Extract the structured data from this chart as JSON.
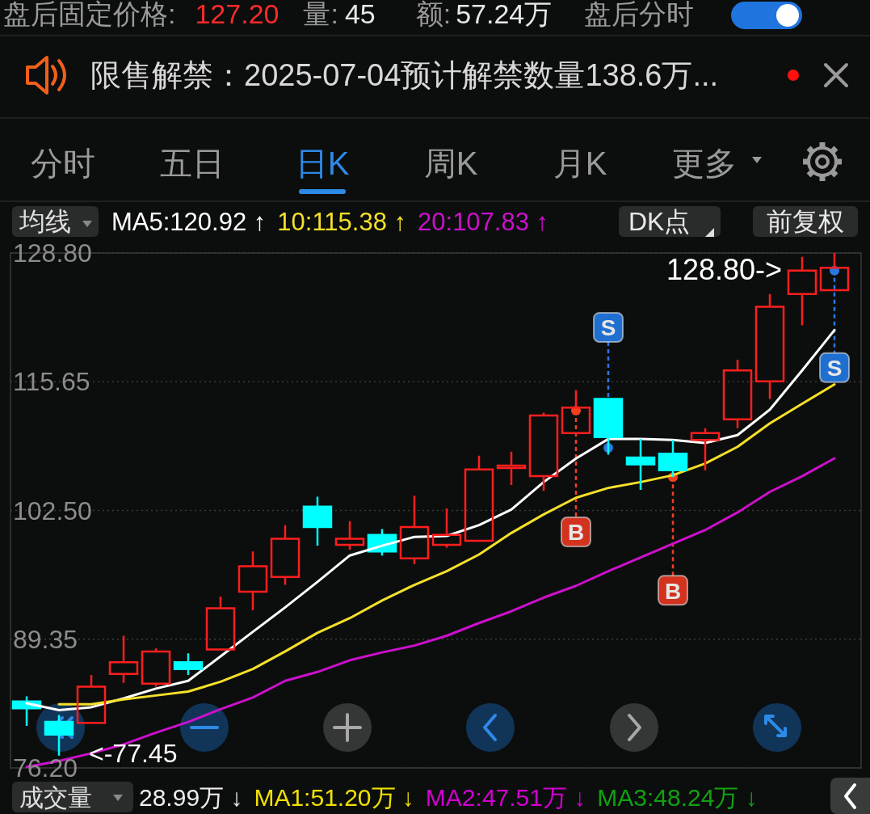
{
  "chart_data": {
    "type": "candlestick",
    "categories": [
      null,
      null,
      null,
      null,
      null,
      null,
      null,
      null,
      null,
      null,
      null,
      null,
      null,
      null,
      null,
      null,
      null,
      null,
      null,
      null,
      null,
      null,
      null,
      null,
      null,
      null
    ],
    "ohlc": [
      [
        83.0,
        83.5,
        80.5,
        82.3
      ],
      [
        80.9,
        81.6,
        77.45,
        79.6
      ],
      [
        80.8,
        85.7,
        80.8,
        84.5
      ],
      [
        85.8,
        89.7,
        84.9,
        87.0
      ],
      [
        84.8,
        88.4,
        84.5,
        88.1
      ],
      [
        87.0,
        87.9,
        85.7,
        86.3
      ],
      [
        88.3,
        93.7,
        88.3,
        92.5
      ],
      [
        94.2,
        98.3,
        92.3,
        96.8
      ],
      [
        95.7,
        101.0,
        94.9,
        99.6
      ],
      [
        102.9,
        103.9,
        98.9,
        100.8
      ],
      [
        99.0,
        101.4,
        98.5,
        99.6
      ],
      [
        100.0,
        100.6,
        97.9,
        98.3
      ],
      [
        97.6,
        104.0,
        97.0,
        100.8
      ],
      [
        99.0,
        102.7,
        98.7,
        100.0
      ],
      [
        99.4,
        108.1,
        99.4,
        106.7
      ],
      [
        106.9,
        108.5,
        105.1,
        107.0
      ],
      [
        106.0,
        112.5,
        104.5,
        112.2
      ],
      [
        110.4,
        114.8,
        110.4,
        113.0
      ],
      [
        113.9,
        114.0,
        108.2,
        110.0
      ],
      [
        107.9,
        109.8,
        104.6,
        107.2
      ],
      [
        108.3,
        109.7,
        105.9,
        106.6
      ],
      [
        109.7,
        110.9,
        106.6,
        110.4
      ],
      [
        111.8,
        117.9,
        110.9,
        116.8
      ],
      [
        115.7,
        124.6,
        113.9,
        123.3
      ],
      [
        124.6,
        128.4,
        121.4,
        127.0
      ],
      [
        125.0,
        128.8,
        125.0,
        127.3
      ]
    ],
    "colors": [
      "#00ffff",
      "#00ffff",
      "#ff1e1e",
      "#ff1e1e",
      "#ff1e1e",
      "#00ffff",
      "#ff1e1e",
      "#ff1e1e",
      "#ff1e1e",
      "#00ffff",
      "#ff1e1e",
      "#00ffff",
      "#ff1e1e",
      "#ff1e1e",
      "#ff1e1e",
      "#ff1e1e",
      "#ff1e1e",
      "#ff1e1e",
      "#00ffff",
      "#00ffff",
      "#00ffff",
      "#ff1e1e",
      "#ff1e1e",
      "#ff1e1e",
      "#ff1e1e",
      "#ff1e1e"
    ],
    "series": [
      {
        "type": "line",
        "name": "MA5:120.92 ↑",
        "color": "#ffffff",
        "values": [
          82.8,
          82.1,
          82.4,
          83.3,
          84.3,
          85.1,
          87.6,
          90.1,
          92.6,
          95.2,
          97.9,
          98.9,
          99.8,
          99.9,
          101.0,
          102.6,
          105.4,
          107.8,
          109.8,
          109.8,
          109.7,
          109.4,
          110.2,
          112.8,
          116.8,
          120.92
        ]
      },
      {
        "type": "line",
        "name": "10:115.38 ↑",
        "color": "#f5e02a",
        "values": [
          null,
          82.7,
          82.7,
          83.2,
          83.6,
          84.0,
          85.0,
          86.3,
          88.1,
          90.0,
          91.5,
          93.3,
          94.9,
          96.3,
          98.0,
          100.2,
          102.1,
          103.8,
          104.8,
          105.4,
          106.1,
          107.3,
          109.0,
          111.4,
          113.4,
          115.38
        ]
      },
      {
        "type": "line",
        "name": "20:107.83 ↑",
        "color": "#cc10cc",
        "values": [
          76.3,
          76.9,
          77.7,
          78.6,
          79.8,
          80.9,
          82.2,
          83.4,
          85.1,
          86.0,
          87.2,
          88.0,
          88.7,
          89.7,
          91.0,
          92.2,
          93.6,
          94.8,
          96.3,
          97.7,
          99.1,
          100.5,
          102.3,
          104.4,
          106.0,
          107.83
        ]
      }
    ],
    "ylim": [
      76.2,
      128.8
    ],
    "yticks": [
      {
        "value": 76.2,
        "label": "76.20"
      },
      89.35,
      {
        "value": 102.5,
        "label": "102.50"
      },
      115.65,
      {
        "value": 128.8,
        "label": "128.80"
      }
    ],
    "grid": "y",
    "legend": "top left",
    "tick_labels": "y",
    "annotations": [
      "盘后固定价格:",
      "127.20",
      "量:",
      "45",
      "额:",
      "57.24万",
      "盘后分时",
      "限售解禁：2025-07-04预计解禁数量138.6万...",
      "分时",
      "五日",
      "日K",
      "周K",
      "月K",
      "更多",
      "均线",
      "DK点",
      "前复权",
      "128.80->",
      "<-77.45",
      {
        "text": "S",
        "y": 108.9
      },
      {
        "text": "B",
        "y": 112.7
      },
      {
        "text": "B",
        "y": 105.9
      },
      {
        "text": "S",
        "y": 127.0
      },
      "成交量",
      "28.99万 ↓",
      "MA1:51.20万 ↓",
      "MA2:47.51万 ↓",
      "MA3:48.24万 ↓"
    ]
  }
}
